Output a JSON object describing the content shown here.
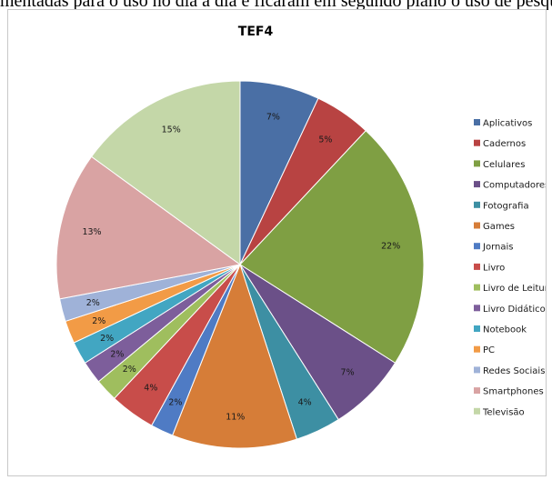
{
  "caption": "mentadas para o uso no dia a dia e ficaram em segundo plano o uso de pesquisas pelo google",
  "chart_data": {
    "type": "pie",
    "title": "TEF4",
    "legend_position": "right",
    "start_angle_deg": 0,
    "direction": "clockwise",
    "categories": [
      "Aplicativos",
      "Cadernos",
      "Celulares",
      "Computadores",
      "Fotografia",
      "Games",
      "Jornais",
      "Livro",
      "Livro de Leitura",
      "Livro Didático",
      "Notebook",
      "PC",
      "Redes Sociais",
      "Smartphones",
      "Televisão"
    ],
    "values": [
      7,
      5,
      22,
      7,
      4,
      11,
      2,
      4,
      2,
      2,
      2,
      2,
      2,
      13,
      15
    ],
    "labels": [
      "7%",
      "5%",
      "22%",
      "7%",
      "4%",
      "11%",
      "2%",
      "4%",
      "2%",
      "2%",
      "2%",
      "2%",
      "2%",
      "13%",
      "15%"
    ],
    "colors": [
      "#4a6fa5",
      "#b84342",
      "#7f9f43",
      "#6b5088",
      "#3d8fa3",
      "#d67d38",
      "#4f7bc4",
      "#c84d4a",
      "#9fbe5e",
      "#7d5e9b",
      "#42a6c2",
      "#f29b46",
      "#9fb2d8",
      "#d9a3a3",
      "#c4d7a8"
    ]
  }
}
